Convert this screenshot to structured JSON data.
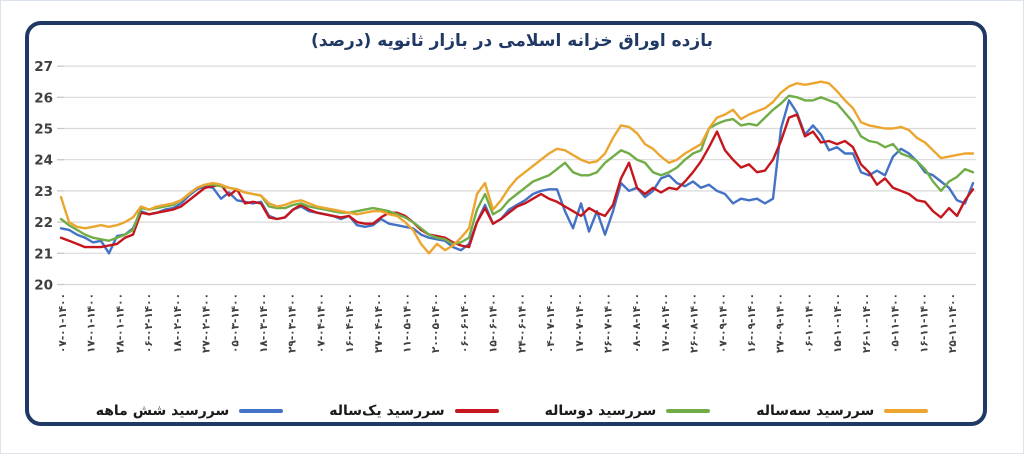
{
  "chart_data": {
    "type": "line",
    "title": "بازده اوراق خزانه اسلامی در بازار ثانویه (درصد)",
    "ylabel": "",
    "xlabel": "",
    "ylim": [
      20,
      27
    ],
    "yticks": [
      20,
      21,
      22,
      23,
      24,
      25,
      26,
      27
    ],
    "grid": true,
    "legend_position": "bottom",
    "colors": {
      "frame": "#1f3864",
      "gridline": "#d9d9d9",
      "axis_text": "#404040"
    },
    "x_tick_labels": [
      "۰۷-۰۱-۱۴۰۰",
      "۱۷-۰۱-۱۴۰۰",
      "۲۸-۰۱-۱۴۰۰",
      "۰۶-۰۲-۱۴۰۰",
      "۱۸-۰۲-۱۴۰۰",
      "۲۷-۰۲-۱۴۰۰",
      "۰۵-۰۳-۱۴۰۰",
      "۱۸-۰۳-۱۴۰۰",
      "۲۹-۰۳-۱۴۰۰",
      "۰۷-۰۴-۱۴۰۰",
      "۱۶-۰۴-۱۴۰۰",
      "۲۷-۰۴-۱۴۰۰",
      "۱۱-۰۵-۱۴۰۰",
      "۲۰-۰۵-۱۴۰۰",
      "۰۶-۰۶-۱۴۰۰",
      "۱۵-۰۶-۱۴۰۰",
      "۲۴-۰۶-۱۴۰۰",
      "۰۴-۰۷-۱۴۰۰",
      "۱۷-۰۷-۱۴۰۰",
      "۲۶-۰۷-۱۴۰۰",
      "۰۸-۰۸-۱۴۰۰",
      "۱۷-۰۸-۱۴۰۰",
      "۲۶-۰۸-۱۴۰۰",
      "۰۷-۰۹-۱۴۰۰",
      "۱۶-۰۹-۱۴۰۰",
      "۲۷-۰۹-۱۴۰۰",
      "۰۶-۱۰-۱۴۰۰",
      "۱۵-۱۰-۱۴۰۰",
      "۲۶-۱۰-۱۴۰۰",
      "۰۵-۱۱-۱۴۰۰",
      "۱۶-۱۱-۱۴۰۰",
      "۲۵-۱۱-۱۴۰۰"
    ],
    "series": [
      {
        "name": "سررسید  شش ماهه",
        "color": "#4472c4",
        "values": [
          21.8,
          21.75,
          21.6,
          21.5,
          21.35,
          21.4,
          21.0,
          21.55,
          21.6,
          21.8,
          22.35,
          22.25,
          22.3,
          22.4,
          22.45,
          22.6,
          22.85,
          23.05,
          23.15,
          23.1,
          22.75,
          22.95,
          22.7,
          22.65,
          22.6,
          22.65,
          22.2,
          22.1,
          22.15,
          22.4,
          22.5,
          22.35,
          22.3,
          22.25,
          22.2,
          22.1,
          22.2,
          21.9,
          21.85,
          21.9,
          22.1,
          21.95,
          21.9,
          21.85,
          21.8,
          21.6,
          21.5,
          21.45,
          21.4,
          21.2,
          21.1,
          21.3,
          22.0,
          22.55,
          21.95,
          22.1,
          22.4,
          22.55,
          22.7,
          22.9,
          23.0,
          23.05,
          23.05,
          22.35,
          21.8,
          22.6,
          21.7,
          22.35,
          21.6,
          22.35,
          23.25,
          23.0,
          23.1,
          22.8,
          23.0,
          23.4,
          23.5,
          23.25,
          23.15,
          23.3,
          23.1,
          23.2,
          23.0,
          22.9,
          22.6,
          22.75,
          22.7,
          22.75,
          22.6,
          22.75,
          25.0,
          25.9,
          25.5,
          24.8,
          25.1,
          24.8,
          24.3,
          24.4,
          24.2,
          24.2,
          23.6,
          23.5,
          23.65,
          23.5,
          24.1,
          24.35,
          24.2,
          23.95,
          23.6,
          23.5,
          23.3,
          23.1,
          22.7,
          22.6,
          23.25
        ]
      },
      {
        "name": "سررسید یک‌ساله",
        "color": "#c5161d",
        "values": [
          21.5,
          21.4,
          21.3,
          21.2,
          21.2,
          21.2,
          21.25,
          21.3,
          21.5,
          21.6,
          22.3,
          22.25,
          22.3,
          22.35,
          22.4,
          22.5,
          22.7,
          22.9,
          23.1,
          23.15,
          23.2,
          22.85,
          23.05,
          22.6,
          22.65,
          22.6,
          22.15,
          22.1,
          22.15,
          22.4,
          22.55,
          22.4,
          22.3,
          22.25,
          22.2,
          22.15,
          22.2,
          22.0,
          21.95,
          21.95,
          22.15,
          22.3,
          22.3,
          22.2,
          22.0,
          21.75,
          21.6,
          21.55,
          21.5,
          21.35,
          21.25,
          21.2,
          22.0,
          22.45,
          21.95,
          22.1,
          22.3,
          22.5,
          22.6,
          22.75,
          22.9,
          22.75,
          22.65,
          22.5,
          22.35,
          22.2,
          22.45,
          22.3,
          22.2,
          22.55,
          23.4,
          23.9,
          23.1,
          22.9,
          23.1,
          22.95,
          23.1,
          23.05,
          23.3,
          23.6,
          23.95,
          24.4,
          24.9,
          24.3,
          24.0,
          23.75,
          23.85,
          23.6,
          23.65,
          24.0,
          24.6,
          25.35,
          25.45,
          24.75,
          24.9,
          24.55,
          24.6,
          24.5,
          24.6,
          24.4,
          23.85,
          23.6,
          23.2,
          23.4,
          23.1,
          23.0,
          22.9,
          22.7,
          22.65,
          22.35,
          22.15,
          22.45,
          22.2,
          22.7,
          23.05
        ]
      },
      {
        "name": "سررسید دوساله",
        "color": "#70ad47",
        "values": [
          22.1,
          21.9,
          21.75,
          21.6,
          21.5,
          21.45,
          21.4,
          21.5,
          21.6,
          21.75,
          22.45,
          22.4,
          22.45,
          22.5,
          22.55,
          22.7,
          22.9,
          23.1,
          23.2,
          23.2,
          23.15,
          23.1,
          23.05,
          22.95,
          22.9,
          22.85,
          22.5,
          22.45,
          22.45,
          22.55,
          22.6,
          22.5,
          22.45,
          22.4,
          22.35,
          22.3,
          22.3,
          22.35,
          22.4,
          22.45,
          22.4,
          22.35,
          22.25,
          22.15,
          22.0,
          21.8,
          21.6,
          21.5,
          21.45,
          21.3,
          21.35,
          21.5,
          22.4,
          22.9,
          22.25,
          22.4,
          22.7,
          22.9,
          23.1,
          23.3,
          23.4,
          23.5,
          23.7,
          23.9,
          23.6,
          23.5,
          23.5,
          23.6,
          23.9,
          24.1,
          24.3,
          24.2,
          24.0,
          23.9,
          23.6,
          23.5,
          23.6,
          23.75,
          24.0,
          24.2,
          24.3,
          25.0,
          25.15,
          25.25,
          25.3,
          25.1,
          25.15,
          25.1,
          25.35,
          25.6,
          25.8,
          26.05,
          26.0,
          25.9,
          25.9,
          26.0,
          25.9,
          25.8,
          25.5,
          25.2,
          24.75,
          24.6,
          24.55,
          24.4,
          24.5,
          24.2,
          24.1,
          23.95,
          23.7,
          23.3,
          23.0,
          23.3,
          23.45,
          23.7,
          23.6
        ]
      },
      {
        "name": "سررسید سه‌ساله",
        "color": "#eca62f",
        "values": [
          22.8,
          22.0,
          21.85,
          21.8,
          21.85,
          21.9,
          21.85,
          21.9,
          22.0,
          22.15,
          22.5,
          22.4,
          22.5,
          22.55,
          22.6,
          22.7,
          22.9,
          23.1,
          23.2,
          23.25,
          23.2,
          23.1,
          23.05,
          22.95,
          22.9,
          22.85,
          22.6,
          22.5,
          22.55,
          22.65,
          22.7,
          22.6,
          22.5,
          22.45,
          22.4,
          22.35,
          22.3,
          22.25,
          22.3,
          22.35,
          22.35,
          22.25,
          22.2,
          22.0,
          21.75,
          21.3,
          21.0,
          21.3,
          21.1,
          21.25,
          21.5,
          21.8,
          22.9,
          23.25,
          22.4,
          22.7,
          23.1,
          23.4,
          23.6,
          23.8,
          24.0,
          24.2,
          24.35,
          24.3,
          24.15,
          24.0,
          23.9,
          23.95,
          24.2,
          24.7,
          25.1,
          25.05,
          24.85,
          24.5,
          24.35,
          24.1,
          23.9,
          24.0,
          24.2,
          24.35,
          24.5,
          25.0,
          25.35,
          25.45,
          25.6,
          25.3,
          25.45,
          25.55,
          25.65,
          25.85,
          26.15,
          26.35,
          26.45,
          26.4,
          26.45,
          26.5,
          26.45,
          26.2,
          25.9,
          25.65,
          25.2,
          25.1,
          25.05,
          25.0,
          25.0,
          25.05,
          24.95,
          24.7,
          24.55,
          24.3,
          24.05,
          24.1,
          24.15,
          24.2,
          24.2
        ]
      }
    ]
  }
}
